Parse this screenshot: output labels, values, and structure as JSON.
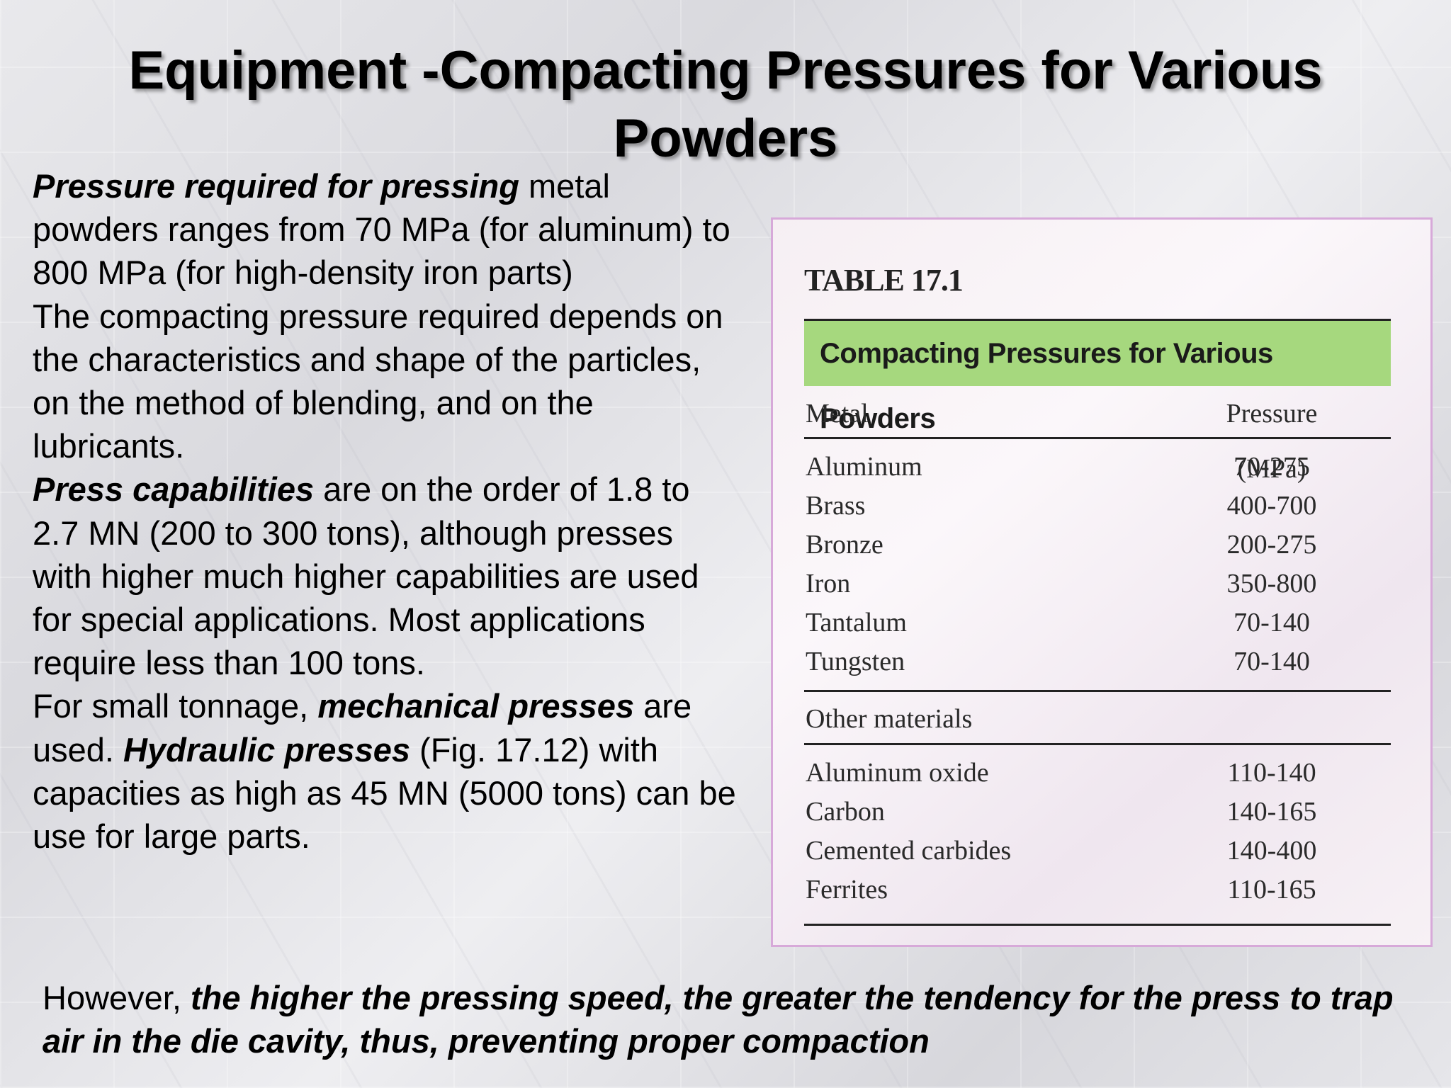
{
  "slide": {
    "title": "Equipment -Compacting Pressures for Various Powders",
    "paragraphs": [
      {
        "bold": "Pressure required for pressing",
        "rest": " metal powders ranges from 70 MPa (for aluminum) to 800 MPa (for high-density iron parts)"
      },
      {
        "text": "The compacting pressure required depends on the characteristics and shape of the particles, on the method of blending, and on the lubricants."
      },
      {
        "bold": "Press capabilities",
        "rest": " are on the order of 1.8 to 2.7 MN (200 to 300 tons), although presses with higher much higher capabilities are used for special applications. Most applications require less than 100 tons."
      },
      {
        "lead": "For small tonnage, ",
        "bold1": "mechanical presses",
        "mid": " are used. ",
        "bold2": "Hydraulic presses",
        "rest": " (Fig. 17.12) with capacities as high as 45 MN (5000 tons) can be use for large parts."
      }
    ],
    "footer": {
      "lead": "However, ",
      "bold": "the higher the pressing speed, the greater the tendency for the press to trap air in the die cavity, thus, preventing proper compaction"
    }
  },
  "table": {
    "number": "TABLE 17.1",
    "heading": "Compacting Pressures for Various Powders",
    "heading_color": "#a6d87e",
    "col_metal": "Metal",
    "col_pressure": "Pressure (MPa)",
    "metals": [
      {
        "name": "Aluminum",
        "pressure": "70-275"
      },
      {
        "name": "Brass",
        "pressure": "400-700"
      },
      {
        "name": "Bronze",
        "pressure": "200-275"
      },
      {
        "name": "Iron",
        "pressure": "350-800"
      },
      {
        "name": "Tantalum",
        "pressure": "70-140"
      },
      {
        "name": "Tungsten",
        "pressure": "70-140"
      }
    ],
    "other_label": "Other materials",
    "others": [
      {
        "name": "Aluminum oxide",
        "pressure": "110-140"
      },
      {
        "name": "Carbon",
        "pressure": "140-165"
      },
      {
        "name": "Cemented carbides",
        "pressure": "140-400"
      },
      {
        "name": "Ferrites",
        "pressure": "110-165"
      }
    ]
  }
}
